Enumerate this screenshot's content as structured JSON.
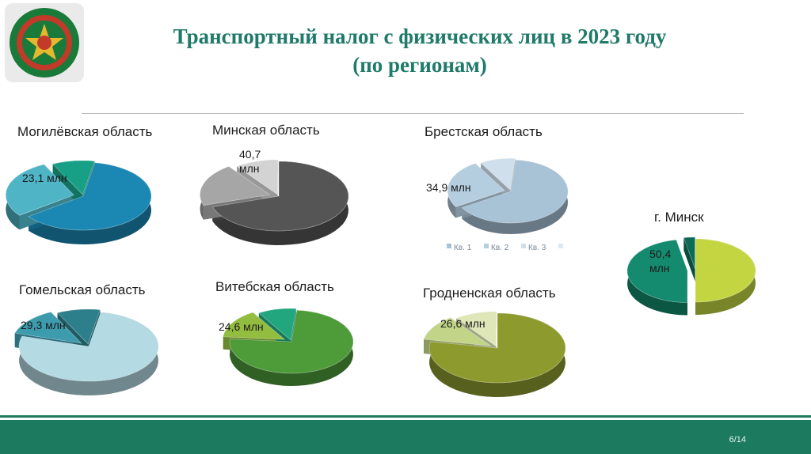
{
  "title": {
    "line1": "Транспортный налог с физических лиц в 2023 году",
    "line2": "(по регионам)"
  },
  "page_number": "6/14",
  "legend": {
    "items": [
      "Кв. 1",
      "Кв. 2",
      "Кв. 3"
    ]
  },
  "chart_data": [
    {
      "type": "pie",
      "region": "Могилёвская область",
      "highlight_label": "23,1 млн",
      "color_main": "#1b87b3",
      "color_highlight": "#4eb4c6",
      "color_third": "#17a085",
      "slices": [
        0.62,
        0.28,
        0.1
      ]
    },
    {
      "type": "pie",
      "region": "Минская область",
      "highlight_label": "40,7\nмлн",
      "color_main": "#555555",
      "color_highlight": "#a6a6a6",
      "color_third": "#d3d3d3",
      "slices": [
        0.7,
        0.2,
        0.1
      ]
    },
    {
      "type": "pie",
      "region": "Брестская область",
      "highlight_label": "34,9 млн",
      "color_main": "#a8c2d6",
      "color_highlight": "#b4cddf",
      "color_third": "#cfdfeb",
      "slices": [
        0.65,
        0.25,
        0.1
      ]
    },
    {
      "type": "pie",
      "region": "г. Минск",
      "highlight_label": "50,4\nмлн",
      "color_main": "#c3d642",
      "color_highlight": "#148a6e",
      "color_third": "#0d6b55",
      "slices": [
        0.5,
        0.47,
        0.03
      ]
    },
    {
      "type": "pie",
      "region": "Гомельская область",
      "highlight_label": "29,3 млн",
      "color_main": "#b4dae3",
      "color_highlight": "#3d9bae",
      "color_third": "#2d7f8b",
      "slices": [
        0.77,
        0.13,
        0.1
      ]
    },
    {
      "type": "pie",
      "region": "Витебская область",
      "highlight_label": "24,6 млн",
      "color_main": "#4e9b3a",
      "color_highlight": "#93bd3f",
      "color_third": "#21a67d",
      "slices": [
        0.75,
        0.15,
        0.1
      ]
    },
    {
      "type": "pie",
      "region": "Гродненская область",
      "highlight_label": "26,6 млн",
      "color_main": "#8d9b2e",
      "color_highlight": "#c2d487",
      "color_third": "#dfe7b8",
      "slices": [
        0.78,
        0.12,
        0.1
      ]
    }
  ]
}
